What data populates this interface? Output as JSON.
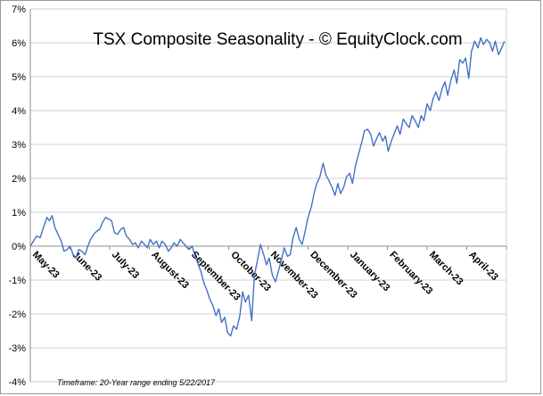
{
  "chart_data": {
    "type": "line",
    "title": "TSX Composite Seasonality - © EquityClock.com",
    "footnote": "Timeframe: 20-Year range ending 5/22/2017",
    "xlabel": "",
    "ylabel": "",
    "ylim": [
      -4,
      7
    ],
    "yticks": [
      -4,
      -3,
      -2,
      -1,
      0,
      1,
      2,
      3,
      4,
      5,
      6,
      7
    ],
    "ytick_labels": [
      "-4%",
      "-3%",
      "-2%",
      "-1%",
      "0%",
      "1%",
      "2%",
      "3%",
      "4%",
      "5%",
      "6%",
      "7%"
    ],
    "categories": [
      "May-23",
      "June-23",
      "July-23",
      "August-23",
      "September-23",
      "October-23",
      "November-23",
      "December-23",
      "January-23",
      "February-23",
      "March-23",
      "April-23"
    ],
    "xlim": [
      0,
      12
    ],
    "grid": true,
    "legend": "none",
    "series_color": "#4472c4",
    "series": [
      {
        "x": [
          0,
          0.08,
          0.16,
          0.25,
          0.33,
          0.42,
          0.48,
          0.55,
          0.62,
          0.7,
          0.78,
          0.85,
          0.93,
          1.0,
          1.08,
          1.15,
          1.22,
          1.3,
          1.38,
          1.45,
          1.52,
          1.6,
          1.68,
          1.75,
          1.82,
          1.9,
          1.97,
          2.05,
          2.12,
          2.2,
          2.28,
          2.35,
          2.42,
          2.5,
          2.58,
          2.65,
          2.72,
          2.8,
          2.88,
          2.95,
          3.02,
          3.1,
          3.18,
          3.25,
          3.32,
          3.4,
          3.48,
          3.55,
          3.62,
          3.7,
          3.78,
          3.85,
          3.92,
          4.0,
          4.08,
          4.15,
          4.22,
          4.3,
          4.38,
          4.45,
          4.52,
          4.6,
          4.68,
          4.75,
          4.82,
          4.9,
          4.97,
          5.05,
          5.12,
          5.2,
          5.28,
          5.35,
          5.42,
          5.5,
          5.58,
          5.65,
          5.72,
          5.8,
          5.88,
          5.95,
          6.02,
          6.1,
          6.18,
          6.25,
          6.32,
          6.4,
          6.48,
          6.55,
          6.62,
          6.7,
          6.78,
          6.85,
          6.92,
          7.0,
          7.08,
          7.15,
          7.22,
          7.3,
          7.38,
          7.45,
          7.52,
          7.6,
          7.68,
          7.75,
          7.82,
          7.9,
          7.97,
          8.05,
          8.12,
          8.2,
          8.28,
          8.35,
          8.42,
          8.5,
          8.58,
          8.65,
          8.72,
          8.8,
          8.88,
          8.95,
          9.02,
          9.1,
          9.18,
          9.25,
          9.32,
          9.4,
          9.48,
          9.55,
          9.62,
          9.7,
          9.78,
          9.85,
          9.92,
          10.0,
          10.08,
          10.15,
          10.22,
          10.3,
          10.38,
          10.45,
          10.52,
          10.6,
          10.68,
          10.75,
          10.82,
          10.9,
          10.97,
          11.05,
          11.12,
          11.2,
          11.28,
          11.35,
          11.42,
          11.5,
          11.58,
          11.65,
          11.72,
          11.8,
          11.88,
          11.95
        ],
        "y": [
          0,
          0.15,
          0.3,
          0.25,
          0.55,
          0.85,
          0.75,
          0.9,
          0.55,
          0.35,
          0.15,
          -0.15,
          -0.1,
          0.0,
          -0.25,
          -0.35,
          -0.1,
          -0.15,
          -0.25,
          0.0,
          0.2,
          0.35,
          0.45,
          0.5,
          0.7,
          0.85,
          0.8,
          0.75,
          0.4,
          0.35,
          0.5,
          0.55,
          0.3,
          0.2,
          0.05,
          0.1,
          -0.05,
          0.15,
          0.05,
          -0.05,
          0.2,
          0.05,
          0.15,
          -0.05,
          0.15,
          0.05,
          -0.15,
          -0.05,
          0.1,
          0.0,
          0.2,
          0.1,
          0.0,
          -0.1,
          0.0,
          -0.3,
          -0.5,
          -0.75,
          -1.1,
          -1.3,
          -1.55,
          -1.75,
          -2.05,
          -1.85,
          -2.25,
          -2.1,
          -2.55,
          -2.65,
          -2.35,
          -2.45,
          -2.05,
          -1.35,
          -1.65,
          -1.45,
          -2.2,
          -0.85,
          -0.45,
          0.05,
          -0.25,
          -0.55,
          -0.35,
          -0.85,
          -1.05,
          -0.75,
          -0.45,
          -0.05,
          -0.3,
          -0.25,
          0.25,
          0.55,
          0.2,
          0.05,
          0.4,
          0.85,
          1.15,
          1.55,
          1.85,
          2.05,
          2.45,
          2.1,
          1.95,
          1.75,
          1.5,
          1.85,
          1.55,
          1.75,
          2.05,
          2.15,
          1.85,
          2.4,
          2.75,
          3.05,
          3.4,
          3.45,
          3.3,
          2.95,
          3.15,
          3.35,
          3.1,
          3.25,
          2.8,
          3.1,
          3.35,
          3.55,
          3.3,
          3.75,
          3.6,
          3.5,
          3.85,
          3.7,
          3.5,
          3.85,
          3.7,
          4.2,
          4.0,
          4.35,
          4.55,
          4.3,
          4.65,
          4.85,
          4.45,
          4.9,
          5.2,
          4.8,
          5.5,
          5.4,
          5.55,
          4.95,
          5.75,
          6.05,
          5.85,
          6.15,
          5.95,
          6.1,
          6.0,
          5.75,
          6.05,
          5.65,
          5.85,
          6.05
        ]
      }
    ]
  }
}
